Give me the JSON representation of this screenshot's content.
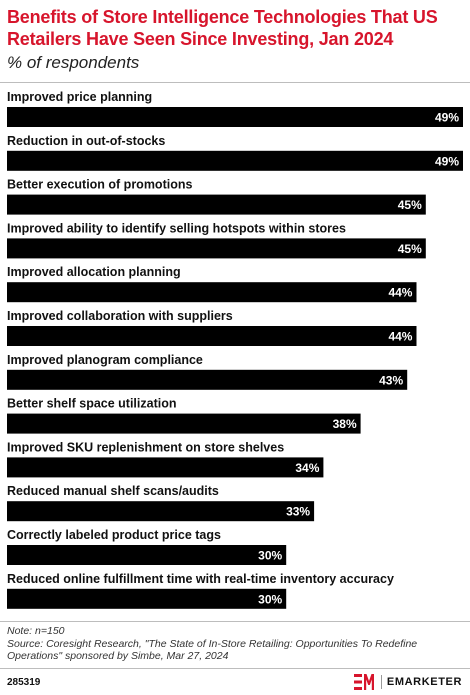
{
  "header": {
    "title": "Benefits of Store Intelligence Technologies That US Retailers Have Seen Since Investing, Jan 2024",
    "subtitle": "% of respondents"
  },
  "footer": {
    "note": "Note: n=150",
    "source": "Source: Coresight Research, \"The State of In-Store Retailing: Opportunities To Redefine Operations\" sponsored by Simbe, Mar 27, 2024",
    "chart_id": "285319",
    "brand": "EMARKETER"
  },
  "colors": {
    "title": "#d7152c",
    "bar": "#000000",
    "brand_logo": "#d7152c"
  },
  "icons": {
    "brand_logo": "em-logo-icon"
  },
  "chart_data": {
    "type": "bar",
    "orientation": "horizontal",
    "title": "Benefits of Store Intelligence Technologies That US Retailers Have Seen Since Investing, Jan 2024",
    "subtitle": "% of respondents",
    "categories": [
      "Improved price planning",
      "Reduction in out-of-stocks",
      "Better execution of promotions",
      "Improved ability to identify selling hotspots within stores",
      "Improved allocation planning",
      "Improved collaboration with suppliers",
      "Improved planogram compliance",
      "Better shelf space utilization",
      "Improved SKU replenishment on store shelves",
      "Reduced manual shelf scans/audits",
      "Correctly labeled product price tags",
      "Reduced online fulfillment time with real-time inventory accuracy"
    ],
    "values": [
      49,
      49,
      45,
      45,
      44,
      44,
      43,
      38,
      34,
      33,
      30,
      30
    ],
    "value_labels": [
      "49%",
      "49%",
      "45%",
      "45%",
      "44%",
      "44%",
      "43%",
      "38%",
      "34%",
      "33%",
      "30%",
      "30%"
    ],
    "xlim": [
      0,
      49
    ],
    "grid": false,
    "legend": "none"
  }
}
